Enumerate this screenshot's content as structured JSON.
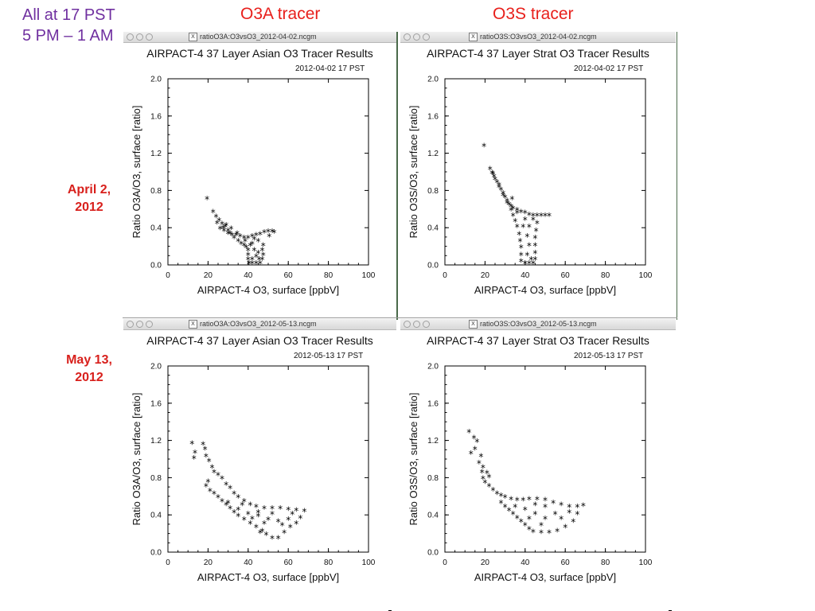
{
  "slide": {
    "note_line1": "All at 17 PST",
    "note_line2": "5 PM – 1 AM",
    "col1_title": "O3A tracer",
    "col2_title": "O3S tracer",
    "row1_label_l1": "April 2,",
    "row1_label_l2": "2012",
    "row2_label_l1": "May 13,",
    "row2_label_l2": "2012"
  },
  "colors": {
    "note": "#7030a0",
    "headers": "#e8201c",
    "points": "#000000"
  },
  "windows": [
    {
      "window_title": "ratioO3A:O3vsO3_2012-04-02.ncgm",
      "title": "AIRPACT-4 37 Layer Asian O3 Tracer Results",
      "date": "2012-04-02 17 PST",
      "xlabel": "AIRPACT-4 O3, surface [ppbV]",
      "ylabel": "Ratio O3A/O3, surface [ratio]",
      "icon": "x11-icon"
    },
    {
      "window_title": "ratioO3S:O3vsO3_2012-04-02.ncgm",
      "title": "AIRPACT-4 37 Layer Strat O3 Tracer Results",
      "date": "2012-04-02 17 PST",
      "xlabel": "AIRPACT-4 O3, surface [ppbV]",
      "ylabel": "Ratio O3S/O3, surface [ratio]",
      "icon": "x11-icon"
    },
    {
      "window_title": "ratioO3A:O3vsO3_2012-05-13.ncgm",
      "title": "AIRPACT-4 37 Layer Asian O3 Tracer Results",
      "date": "2012-05-13 17 PST",
      "xlabel": "AIRPACT-4 O3, surface [ppbV]",
      "ylabel": "Ratio O3A/O3, surface [ratio]",
      "icon": "x11-icon"
    },
    {
      "window_title": "ratioO3S:O3vsO3_2012-05-13.ncgm",
      "title": "AIRPACT-4 37 Layer Strat O3 Tracer Results",
      "date": "2012-05-13 17 PST",
      "xlabel": "AIRPACT-4 O3, surface [ppbV]",
      "ylabel": "Ratio O3S/O3, surface [ratio]",
      "icon": "x11-icon"
    }
  ],
  "chart_data": [
    {
      "type": "scatter",
      "title": "AIRPACT-4 37 Layer Asian O3 Tracer Results",
      "subtitle": "2012-04-02 17 PST",
      "xlabel": "AIRPACT-4 O3, surface [ppbV]",
      "ylabel": "Ratio O3A/O3, surface [ratio]",
      "xlim": [
        0,
        100
      ],
      "ylim": [
        0,
        2.0
      ],
      "xticks": [
        "0",
        "20",
        "40",
        "60",
        "80",
        "100"
      ],
      "yticks": [
        "0.0",
        "0.4",
        "0.8",
        "1.2",
        "1.6",
        "2.0"
      ],
      "marker": "*",
      "series": [
        {
          "points": [
            [
              19.5,
              0.7
            ],
            [
              22.5,
              0.56
            ],
            [
              24.0,
              0.51
            ],
            [
              25.5,
              0.47
            ],
            [
              27.0,
              0.43
            ],
            [
              28.5,
              0.4
            ],
            [
              30.0,
              0.36
            ],
            [
              31.0,
              0.33
            ],
            [
              32.0,
              0.31
            ],
            [
              34.0,
              0.31
            ],
            [
              36.0,
              0.3
            ],
            [
              38.0,
              0.28
            ],
            [
              40.0,
              0.28
            ],
            [
              42.0,
              0.3
            ],
            [
              44.0,
              0.31
            ],
            [
              46.0,
              0.32
            ],
            [
              48.0,
              0.34
            ],
            [
              50.0,
              0.35
            ],
            [
              52.0,
              0.35
            ],
            [
              53.0,
              0.34
            ],
            [
              26.0,
              0.38
            ],
            [
              28.0,
              0.36
            ],
            [
              30.0,
              0.33
            ],
            [
              33.0,
              0.28
            ],
            [
              35.0,
              0.25
            ],
            [
              36.5,
              0.22
            ],
            [
              38.0,
              0.2
            ],
            [
              39.0,
              0.18
            ],
            [
              40.0,
              0.15
            ],
            [
              40.0,
              0.1
            ],
            [
              40.0,
              0.05
            ],
            [
              40.5,
              0.01
            ],
            [
              42.0,
              0.01
            ],
            [
              44.0,
              0.01
            ],
            [
              46.0,
              0.01
            ],
            [
              47.0,
              0.05
            ],
            [
              47.5,
              0.1
            ],
            [
              47.0,
              0.15
            ],
            [
              47.5,
              0.2
            ],
            [
              45.0,
              0.25
            ],
            [
              42.0,
              0.22
            ],
            [
              43.0,
              0.15
            ],
            [
              44.0,
              0.08
            ],
            [
              42.0,
              0.05
            ],
            [
              45.0,
              0.12
            ],
            [
              43.0,
              0.27
            ],
            [
              38.5,
              0.25
            ],
            [
              29.0,
              0.42
            ],
            [
              31.5,
              0.38
            ],
            [
              50.5,
              0.3
            ],
            [
              24.5,
              0.44
            ],
            [
              27.5,
              0.39
            ],
            [
              34.5,
              0.33
            ],
            [
              45.5,
              0.05
            ],
            [
              41.0,
              0.2
            ]
          ]
        }
      ]
    },
    {
      "type": "scatter",
      "title": "AIRPACT-4 37 Layer Strat O3 Tracer Results",
      "subtitle": "2012-04-02 17 PST",
      "xlabel": "AIRPACT-4 O3, surface [ppbV]",
      "ylabel": "Ratio O3S/O3, surface [ratio]",
      "xlim": [
        0,
        100
      ],
      "ylim": [
        0,
        2.0
      ],
      "xticks": [
        "0",
        "20",
        "40",
        "60",
        "80",
        "100"
      ],
      "yticks": [
        "0.0",
        "0.4",
        "0.8",
        "1.2",
        "1.6",
        "2.0"
      ],
      "marker": "*",
      "series": [
        {
          "points": [
            [
              19.5,
              1.27
            ],
            [
              22.5,
              1.02
            ],
            [
              23.5,
              0.98
            ],
            [
              24.5,
              0.94
            ],
            [
              25.0,
              0.91
            ],
            [
              26.0,
              0.88
            ],
            [
              27.0,
              0.85
            ],
            [
              28.0,
              0.8
            ],
            [
              29.0,
              0.76
            ],
            [
              30.0,
              0.72
            ],
            [
              31.0,
              0.68
            ],
            [
              32.0,
              0.64
            ],
            [
              33.0,
              0.62
            ],
            [
              34.0,
              0.6
            ],
            [
              36.0,
              0.58
            ],
            [
              38.0,
              0.56
            ],
            [
              40.0,
              0.55
            ],
            [
              42.0,
              0.53
            ],
            [
              44.0,
              0.52
            ],
            [
              46.0,
              0.52
            ],
            [
              48.0,
              0.52
            ],
            [
              50.0,
              0.52
            ],
            [
              52.0,
              0.52
            ],
            [
              27.0,
              0.83
            ],
            [
              29.0,
              0.74
            ],
            [
              31.0,
              0.66
            ],
            [
              33.0,
              0.58
            ],
            [
              34.0,
              0.52
            ],
            [
              35.0,
              0.46
            ],
            [
              36.0,
              0.4
            ],
            [
              37.0,
              0.32
            ],
            [
              37.5,
              0.25
            ],
            [
              38.0,
              0.18
            ],
            [
              38.0,
              0.1
            ],
            [
              38.0,
              0.03
            ],
            [
              40.0,
              0.01
            ],
            [
              42.0,
              0.01
            ],
            [
              44.0,
              0.01
            ],
            [
              45.0,
              0.05
            ],
            [
              45.0,
              0.12
            ],
            [
              45.0,
              0.2
            ],
            [
              45.0,
              0.28
            ],
            [
              45.5,
              0.36
            ],
            [
              46.0,
              0.44
            ],
            [
              44.0,
              0.48
            ],
            [
              40.0,
              0.48
            ],
            [
              42.0,
              0.4
            ],
            [
              41.0,
              0.3
            ],
            [
              42.0,
              0.2
            ],
            [
              41.0,
              0.1
            ],
            [
              39.0,
              0.4
            ],
            [
              36.0,
              0.55
            ],
            [
              33.5,
              0.7
            ],
            [
              24.0,
              0.97
            ],
            [
              43.0,
              0.05
            ]
          ]
        }
      ]
    },
    {
      "type": "scatter",
      "title": "AIRPACT-4 37 Layer Asian O3 Tracer Results",
      "subtitle": "2012-05-13 17 PST",
      "xlabel": "AIRPACT-4 O3, surface [ppbV]",
      "ylabel": "Ratio O3A/O3, surface [ratio]",
      "xlim": [
        0,
        100
      ],
      "ylim": [
        0,
        2.0
      ],
      "xticks": [
        "0",
        "20",
        "40",
        "60",
        "80",
        "100"
      ],
      "yticks": [
        "0.0",
        "0.4",
        "0.8",
        "1.2",
        "1.6",
        "2.0"
      ],
      "marker": "*",
      "series": [
        {
          "points": [
            [
              12.0,
              1.16
            ],
            [
              17.5,
              1.15
            ],
            [
              18.5,
              1.1
            ],
            [
              13.5,
              1.06
            ],
            [
              13.0,
              1.0
            ],
            [
              19.0,
              1.02
            ],
            [
              20.5,
              0.97
            ],
            [
              22.0,
              0.9
            ],
            [
              23.0,
              0.85
            ],
            [
              25.0,
              0.82
            ],
            [
              27.0,
              0.78
            ],
            [
              29.0,
              0.72
            ],
            [
              31.0,
              0.68
            ],
            [
              33.0,
              0.62
            ],
            [
              35.0,
              0.58
            ],
            [
              38.0,
              0.54
            ],
            [
              41.0,
              0.5
            ],
            [
              44.0,
              0.48
            ],
            [
              48.0,
              0.46
            ],
            [
              52.0,
              0.46
            ],
            [
              56.0,
              0.46
            ],
            [
              60.0,
              0.45
            ],
            [
              64.0,
              0.44
            ],
            [
              68.0,
              0.43
            ],
            [
              20.0,
              0.75
            ],
            [
              19.0,
              0.7
            ],
            [
              21.0,
              0.65
            ],
            [
              23.0,
              0.62
            ],
            [
              25.0,
              0.58
            ],
            [
              27.0,
              0.54
            ],
            [
              29.0,
              0.5
            ],
            [
              31.0,
              0.46
            ],
            [
              33.0,
              0.42
            ],
            [
              35.0,
              0.38
            ],
            [
              38.0,
              0.34
            ],
            [
              41.0,
              0.3
            ],
            [
              44.0,
              0.26
            ],
            [
              47.0,
              0.22
            ],
            [
              49.0,
              0.18
            ],
            [
              52.0,
              0.14
            ],
            [
              55.0,
              0.14
            ],
            [
              58.0,
              0.2
            ],
            [
              61.0,
              0.26
            ],
            [
              64.0,
              0.3
            ],
            [
              66.0,
              0.36
            ],
            [
              40.0,
              0.4
            ],
            [
              45.0,
              0.38
            ],
            [
              50.0,
              0.34
            ],
            [
              55.0,
              0.32
            ],
            [
              60.0,
              0.34
            ],
            [
              35.0,
              0.45
            ],
            [
              30.0,
              0.52
            ],
            [
              45.0,
              0.42
            ],
            [
              52.0,
              0.4
            ],
            [
              57.0,
              0.28
            ],
            [
              48.0,
              0.3
            ],
            [
              42.0,
              0.35
            ],
            [
              62.0,
              0.4
            ],
            [
              37.0,
              0.5
            ],
            [
              46.0,
              0.2
            ]
          ]
        }
      ]
    },
    {
      "type": "scatter",
      "title": "AIRPACT-4 37 Layer Strat O3 Tracer Results",
      "subtitle": "2012-05-13 17 PST",
      "xlabel": "AIRPACT-4 O3, surface [ppbV]",
      "ylabel": "Ratio O3S/O3, surface [ratio]",
      "xlim": [
        0,
        100
      ],
      "ylim": [
        0,
        2.0
      ],
      "xticks": [
        "0",
        "20",
        "40",
        "60",
        "80",
        "100"
      ],
      "yticks": [
        "0.0",
        "0.4",
        "0.8",
        "1.2",
        "1.6",
        "2.0"
      ],
      "marker": "*",
      "series": [
        {
          "points": [
            [
              12.0,
              1.28
            ],
            [
              14.5,
              1.22
            ],
            [
              16.0,
              1.18
            ],
            [
              15.0,
              1.1
            ],
            [
              13.0,
              1.05
            ],
            [
              18.0,
              1.02
            ],
            [
              17.0,
              0.95
            ],
            [
              19.0,
              0.9
            ],
            [
              21.0,
              0.84
            ],
            [
              22.0,
              0.8
            ],
            [
              18.5,
              0.85
            ],
            [
              19.0,
              0.78
            ],
            [
              20.0,
              0.74
            ],
            [
              22.0,
              0.7
            ],
            [
              24.0,
              0.66
            ],
            [
              26.0,
              0.62
            ],
            [
              28.0,
              0.6
            ],
            [
              30.0,
              0.58
            ],
            [
              33.0,
              0.56
            ],
            [
              36.0,
              0.55
            ],
            [
              39.0,
              0.55
            ],
            [
              42.0,
              0.56
            ],
            [
              46.0,
              0.56
            ],
            [
              50.0,
              0.55
            ],
            [
              54.0,
              0.52
            ],
            [
              58.0,
              0.5
            ],
            [
              62.0,
              0.48
            ],
            [
              66.0,
              0.48
            ],
            [
              69.0,
              0.49
            ],
            [
              28.0,
              0.52
            ],
            [
              30.0,
              0.48
            ],
            [
              32.0,
              0.44
            ],
            [
              34.0,
              0.4
            ],
            [
              36.0,
              0.36
            ],
            [
              38.0,
              0.32
            ],
            [
              40.0,
              0.28
            ],
            [
              42.0,
              0.24
            ],
            [
              44.0,
              0.21
            ],
            [
              48.0,
              0.2
            ],
            [
              52.0,
              0.2
            ],
            [
              56.0,
              0.22
            ],
            [
              60.0,
              0.26
            ],
            [
              64.0,
              0.32
            ],
            [
              66.0,
              0.4
            ],
            [
              40.0,
              0.45
            ],
            [
              45.0,
              0.4
            ],
            [
              50.0,
              0.35
            ],
            [
              55.0,
              0.4
            ],
            [
              45.0,
              0.5
            ],
            [
              50.0,
              0.48
            ],
            [
              42.0,
              0.35
            ],
            [
              48.0,
              0.28
            ],
            [
              58.0,
              0.35
            ],
            [
              35.0,
              0.48
            ],
            [
              62.0,
              0.42
            ]
          ]
        }
      ]
    }
  ]
}
